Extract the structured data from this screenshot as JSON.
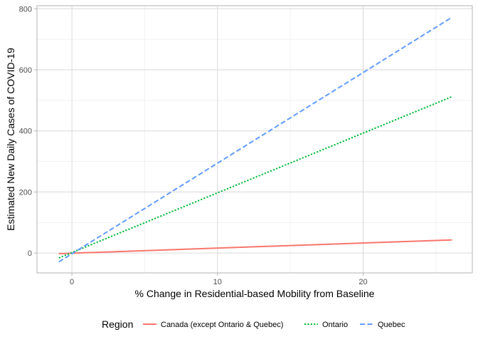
{
  "chart_data": {
    "type": "line",
    "title": "",
    "xlabel": "% Change in Residential-based Mobility from Baseline",
    "ylabel": "Estimated New Daily Cases of COVID-19",
    "xlim": [
      -2.4,
      27.5
    ],
    "ylim": [
      -65,
      810
    ],
    "x_ticks": [
      0,
      10,
      20
    ],
    "y_ticks": [
      0,
      200,
      400,
      600,
      800
    ],
    "x_minor": [
      -5,
      5,
      15,
      25
    ],
    "y_minor": [
      100,
      300,
      500,
      700
    ],
    "grid": true,
    "legend": {
      "title": "Region",
      "position": "bottom"
    },
    "series": [
      {
        "name": "Canada (except Ontario & Quebec)",
        "color": "#F8766D",
        "dash": "solid",
        "x": [
          -0.9,
          26.1
        ],
        "y": [
          -2,
          43
        ]
      },
      {
        "name": "Ontario",
        "color": "#00BA38",
        "dash": "dotted",
        "x": [
          -0.9,
          26.1
        ],
        "y": [
          -16,
          512
        ]
      },
      {
        "name": "Quebec",
        "color": "#619CFF",
        "dash": "dashed",
        "x": [
          -0.9,
          26.1
        ],
        "y": [
          -29,
          772
        ]
      }
    ]
  }
}
